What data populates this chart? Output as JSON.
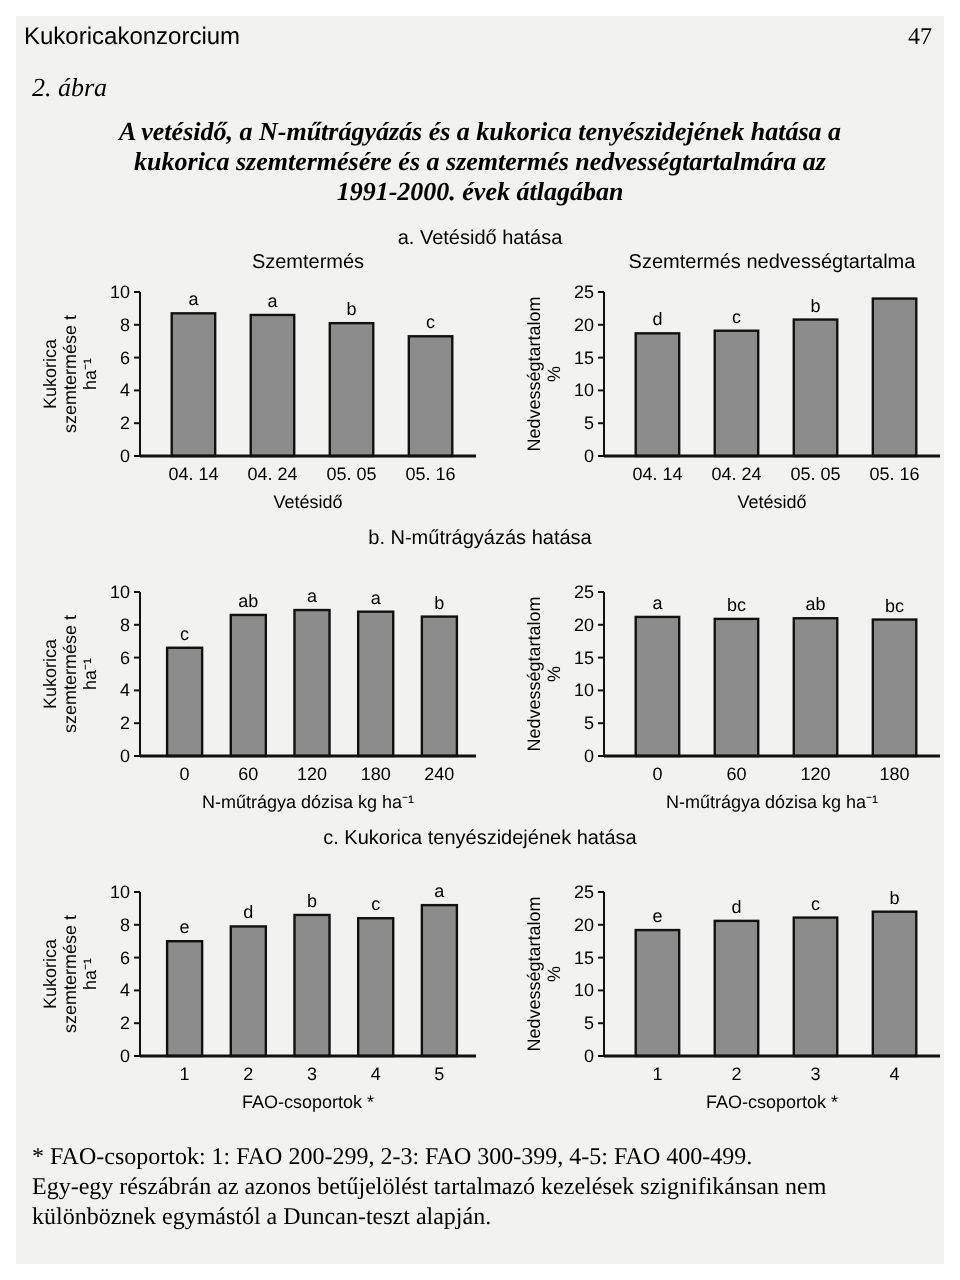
{
  "chart_data": [
    {
      "type": "bar",
      "title": "Szemtermés",
      "subtitle": "a. Vetésidő hatása",
      "xlabel": "Vetésidő",
      "ylabel": "Kukorica szemtermése t ha⁻¹",
      "categories": [
        "04. 14",
        "04. 24",
        "05. 05",
        "05. 16"
      ],
      "values": [
        8.7,
        8.6,
        8.1,
        7.3
      ],
      "value_labels": [
        "a",
        "a",
        "b",
        "c"
      ],
      "color": "#8c8c8c",
      "ylim": [
        0,
        10
      ],
      "yticks": [
        0,
        2,
        4,
        6,
        8,
        10
      ],
      "annotations": [
        "Kukoricakonzorcium",
        "47",
        "2. ábra",
        "A vetésidő, a N-műtrágyázás és a kukorica tenyészidejének hatása a kukorica szemtermésére és a szemtermés nedvességtartalmára az 1991-2000. évek átlagában"
      ]
    },
    {
      "type": "bar",
      "title": "Szemtermés nedvességtartalma",
      "xlabel": "Vetésidő",
      "ylabel": "Nedvességtartalom %",
      "categories": [
        "04. 14",
        "04. 24",
        "05. 05",
        "05. 16"
      ],
      "values": [
        18.7,
        19.1,
        20.8,
        24
      ],
      "value_labels": [
        "d",
        "c",
        "b",
        null
      ],
      "color": "#8c8c8c",
      "ylim": [
        0,
        25
      ],
      "yticks": [
        0,
        5,
        10,
        15,
        20,
        25
      ]
    },
    {
      "type": "bar",
      "subtitle": "b. N-műtrágyázás hatása",
      "xlabel": "N-műtrágya dózisa kg ha⁻¹",
      "ylabel": "Kukorica szemtermése t ha⁻¹",
      "categories": [
        "0",
        "60",
        "120",
        "180",
        "240"
      ],
      "values": [
        6.6,
        8.6,
        8.9,
        8.8,
        8.5
      ],
      "value_labels": [
        "c",
        "ab",
        "a",
        "a",
        "b"
      ],
      "color": "#8c8c8c",
      "ylim": [
        0,
        10
      ],
      "yticks": [
        0,
        2,
        4,
        6,
        8,
        10
      ]
    },
    {
      "type": "bar",
      "xlabel": "N-műtrágya dózisa kg ha⁻¹",
      "ylabel": "Nedvességtartalom %",
      "categories": [
        "0",
        "60",
        "120",
        "180"
      ],
      "values": [
        21.2,
        20.9,
        21.0,
        20.8
      ],
      "value_labels": [
        "a",
        "bc",
        "ab",
        "bc"
      ],
      "color": "#8c8c8c",
      "ylim": [
        0,
        25
      ],
      "yticks": [
        0,
        5,
        10,
        15,
        20,
        25
      ]
    },
    {
      "type": "bar",
      "subtitle": "c. Kukorica tenyészidejének hatása",
      "xlabel": "FAO-csoportok *",
      "ylabel": "Kukorica szemtermése t ha⁻¹",
      "categories": [
        "1",
        "2",
        "3",
        "4",
        "5"
      ],
      "values": [
        7.0,
        7.9,
        8.6,
        8.4,
        9.2
      ],
      "value_labels": [
        "e",
        "d",
        "b",
        "c",
        "a"
      ],
      "color": "#8c8c8c",
      "ylim": [
        0,
        10
      ],
      "yticks": [
        0,
        2,
        4,
        6,
        8,
        10
      ]
    },
    {
      "type": "bar",
      "xlabel": "FAO-csoportok *",
      "ylabel": "Nedvességtartalom %",
      "categories": [
        "1",
        "2",
        "3",
        "4"
      ],
      "values": [
        19.2,
        20.6,
        21.1,
        22.0
      ],
      "value_labels": [
        "e",
        "d",
        "c",
        "b"
      ],
      "color": "#8c8c8c",
      "ylim": [
        0,
        25
      ],
      "yticks": [
        0,
        5,
        10,
        15,
        20,
        25
      ],
      "annotations": [
        "* FAO-csoportok: 1: FAO 200-299, 2-3: FAO 300-399, 4-5: FAO 400-499.",
        "Egy-egy részábrán az azonos betűjelölést tartalmazó kezelések szignifikánsan nem különböznek egymástól a Duncan-teszt alapján."
      ]
    }
  ]
}
